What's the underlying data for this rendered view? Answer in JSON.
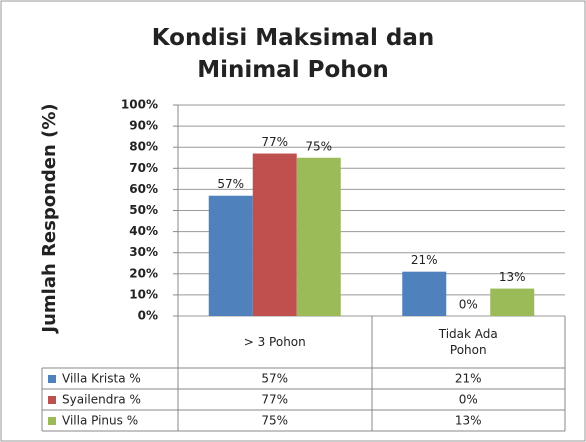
{
  "chart_data": {
    "type": "bar",
    "title": "Kondisi Maksimal dan Minimal Pohon",
    "y_label": "Jumlah Responden (%)",
    "categories": [
      "> 3 Pohon",
      "Tidak Ada Pohon"
    ],
    "series": [
      {
        "name": "Villa Krista %",
        "color": "#4f81bd",
        "values": [
          57,
          21
        ],
        "value_labels": [
          "57%",
          "21%"
        ]
      },
      {
        "name": "Syailendra %",
        "color": "#c0504d",
        "values": [
          77,
          0
        ],
        "value_labels": [
          "77%",
          "0%"
        ]
      },
      {
        "name": "Villa Pinus %",
        "color": "#9bbb59",
        "values": [
          75,
          13
        ],
        "value_labels": [
          "75%",
          "13%"
        ]
      }
    ],
    "ylim": [
      0,
      100
    ],
    "yticks": [
      {
        "value": 0,
        "label": "0%"
      },
      {
        "value": 10,
        "label": "10%"
      },
      {
        "value": 20,
        "label": "20%"
      },
      {
        "value": 30,
        "label": "30%"
      },
      {
        "value": 40,
        "label": "40%"
      },
      {
        "value": 50,
        "label": "50%"
      },
      {
        "value": 60,
        "label": "60%"
      },
      {
        "value": 70,
        "label": "70%"
      },
      {
        "value": 80,
        "label": "80%"
      },
      {
        "value": 90,
        "label": "90%"
      },
      {
        "value": 100,
        "label": "100%"
      }
    ],
    "grid": true,
    "data_table": true
  }
}
